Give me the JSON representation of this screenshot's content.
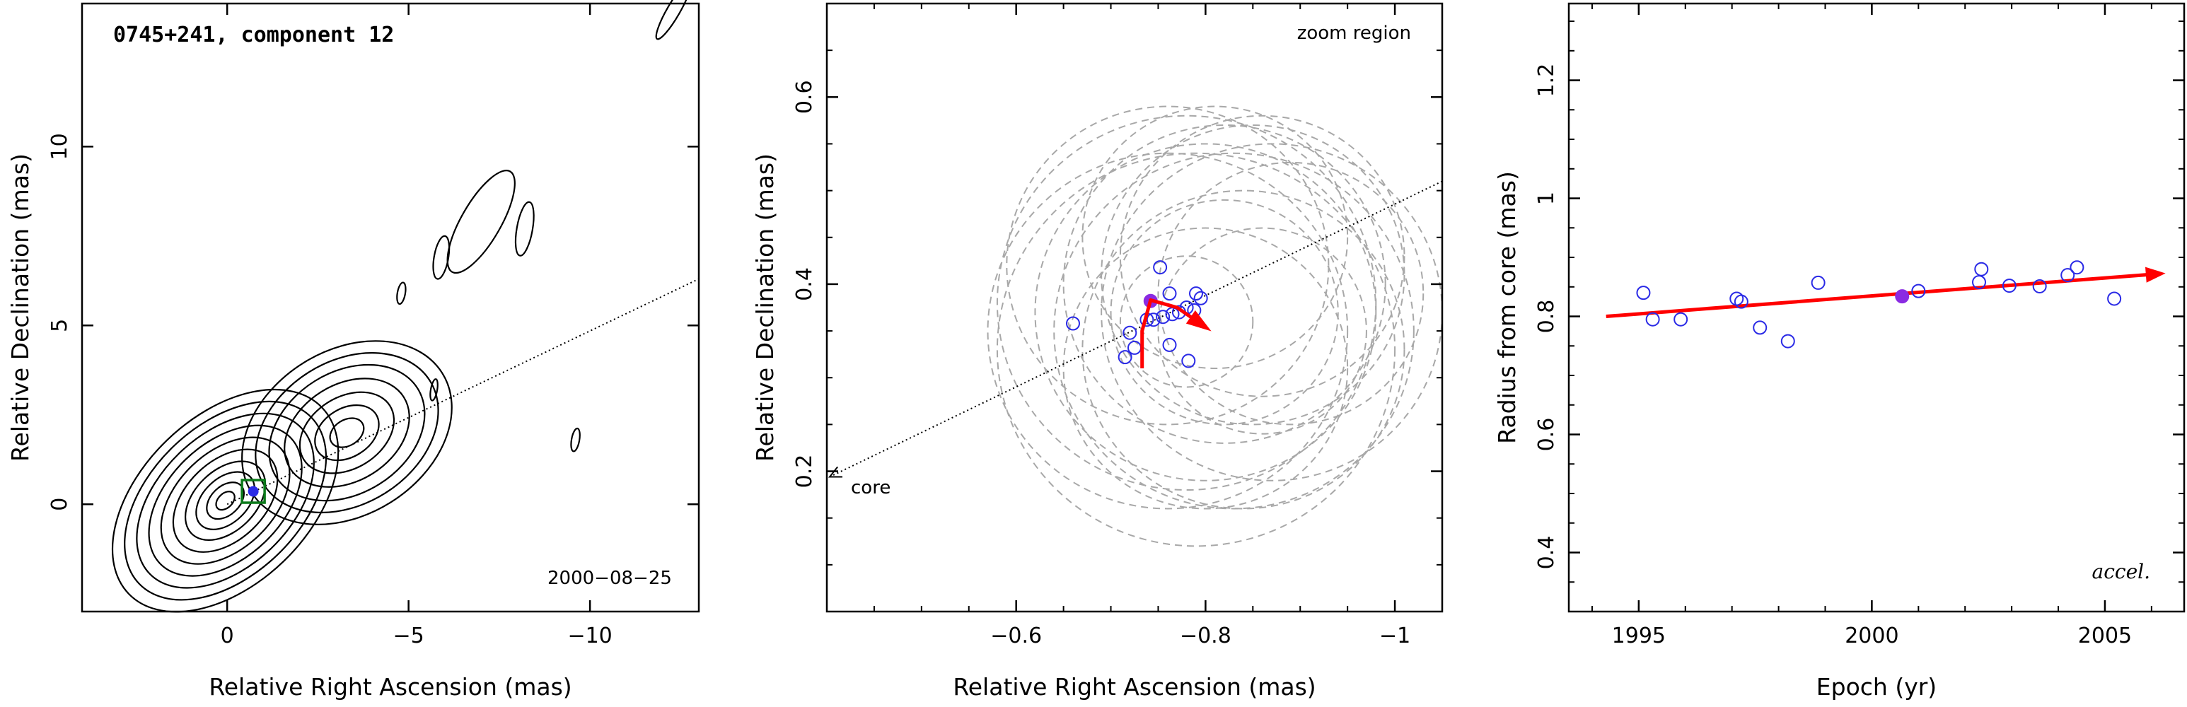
{
  "chart_data": [
    {
      "type": "contour",
      "title": "0745+241, component 12",
      "xlabel": "Relative Right Ascension (mas)",
      "ylabel": "Relative Declination (mas)",
      "xlim": [
        4,
        -13
      ],
      "ylim": [
        -3,
        14
      ],
      "xticks": [
        {
          "value": 0,
          "label": "0"
        },
        {
          "value": -5,
          "label": "−5"
        },
        {
          "value": -10,
          "label": "−10"
        }
      ],
      "yticks": [
        {
          "value": 0,
          "label": "0"
        },
        {
          "value": 5,
          "label": "5"
        },
        {
          "value": 10,
          "label": "10"
        }
      ],
      "epoch_label": "2000−08−25",
      "jet_axis": {
        "from": [
          0,
          0
        ],
        "to": [
          -13,
          6.3
        ]
      },
      "component": {
        "x": -0.72,
        "y": 0.36
      },
      "contour_blobs": [
        {
          "cx": 0.05,
          "cy": 0.1,
          "rings": [
            [
              3.7,
              2.35,
              -44
            ],
            [
              3.3,
              2.1,
              -44
            ],
            [
              2.9,
              1.85,
              -44
            ],
            [
              2.5,
              1.6,
              -44
            ],
            [
              2.1,
              1.35,
              -44
            ],
            [
              1.7,
              1.1,
              -44
            ],
            [
              1.3,
              0.85,
              -44
            ],
            [
              0.95,
              0.62,
              -44
            ],
            [
              0.6,
              0.4,
              -44
            ],
            [
              0.3,
              0.2,
              -44
            ]
          ]
        },
        {
          "cx": -3.3,
          "cy": 2.0,
          "rings": [
            [
              3.1,
              2.3,
              -32
            ],
            [
              2.7,
              2.0,
              -32
            ],
            [
              2.3,
              1.7,
              -32
            ],
            [
              1.85,
              1.35,
              -32
            ],
            [
              1.4,
              1.0,
              -32
            ],
            [
              0.95,
              0.68,
              -32
            ],
            [
              0.5,
              0.36,
              -32
            ]
          ]
        },
        {
          "cx": -7.0,
          "cy": 7.9,
          "rings": [
            [
              1.6,
              0.55,
              -60
            ]
          ]
        },
        {
          "cx": -8.2,
          "cy": 7.7,
          "rings": [
            [
              0.75,
              0.22,
              -80
            ]
          ]
        },
        {
          "cx": -5.9,
          "cy": 6.9,
          "rings": [
            [
              0.6,
              0.2,
              -80
            ]
          ]
        },
        {
          "cx": -4.8,
          "cy": 5.9,
          "rings": [
            [
              0.3,
              0.11,
              -80
            ]
          ]
        },
        {
          "cx": -5.7,
          "cy": 3.2,
          "rings": [
            [
              0.3,
              0.09,
              -80
            ]
          ]
        },
        {
          "cx": -9.6,
          "cy": 1.8,
          "rings": [
            [
              0.32,
              0.11,
              -80
            ]
          ]
        },
        {
          "cx": -12.3,
          "cy": 13.8,
          "rings": [
            [
              0.9,
              0.18,
              -60
            ]
          ]
        }
      ],
      "grid": false
    },
    {
      "type": "scatter",
      "xlabel": "Relative Right Ascension (mas)",
      "ylabel": "Relative Declination (mas)",
      "corner_label": "zoom region",
      "core_label": "core",
      "xlim": [
        -0.4,
        -1.05
      ],
      "ylim": [
        0.05,
        0.7
      ],
      "xticks": [
        {
          "value": -0.6,
          "label": "−0.6"
        },
        {
          "value": -0.8,
          "label": "−0.8"
        },
        {
          "value": -1.0,
          "label": "−1"
        }
      ],
      "yticks": [
        {
          "value": 0.2,
          "label": "0.2"
        },
        {
          "value": 0.4,
          "label": "0.4"
        },
        {
          "value": 0.6,
          "label": "0.6"
        }
      ],
      "minor_x_step": 0.05,
      "minor_y_step": 0.05,
      "positions": [
        {
          "x": -0.66,
          "y": 0.358
        },
        {
          "x": -0.72,
          "y": 0.348
        },
        {
          "x": -0.715,
          "y": 0.322
        },
        {
          "x": -0.725,
          "y": 0.332
        },
        {
          "x": -0.745,
          "y": 0.362
        },
        {
          "x": -0.738,
          "y": 0.362
        },
        {
          "x": -0.752,
          "y": 0.418
        },
        {
          "x": -0.755,
          "y": 0.365
        },
        {
          "x": -0.762,
          "y": 0.39
        },
        {
          "x": -0.765,
          "y": 0.368
        },
        {
          "x": -0.772,
          "y": 0.37
        },
        {
          "x": -0.78,
          "y": 0.375
        },
        {
          "x": -0.788,
          "y": 0.372
        },
        {
          "x": -0.79,
          "y": 0.39
        },
        {
          "x": -0.795,
          "y": 0.385
        },
        {
          "x": -0.762,
          "y": 0.335
        },
        {
          "x": -0.782,
          "y": 0.318
        }
      ],
      "highlight": {
        "x": -0.742,
        "y": 0.382
      },
      "beam_ellipses": [
        {
          "cx": -0.76,
          "cy": 0.35,
          "r": 0.19
        },
        {
          "cx": -0.78,
          "cy": 0.38,
          "r": 0.2
        },
        {
          "cx": -0.8,
          "cy": 0.37,
          "r": 0.18
        },
        {
          "cx": -0.82,
          "cy": 0.4,
          "r": 0.17
        },
        {
          "cx": -0.83,
          "cy": 0.35,
          "r": 0.19
        },
        {
          "cx": -0.85,
          "cy": 0.41,
          "r": 0.16
        },
        {
          "cx": -0.87,
          "cy": 0.37,
          "r": 0.18
        },
        {
          "cx": -0.84,
          "cy": 0.33,
          "r": 0.17
        },
        {
          "cx": -0.86,
          "cy": 0.43,
          "r": 0.15
        },
        {
          "cx": -0.79,
          "cy": 0.33,
          "r": 0.21
        },
        {
          "cx": -0.82,
          "cy": 0.37,
          "r": 0.12
        },
        {
          "cx": -0.86,
          "cy": 0.35,
          "r": 0.11
        },
        {
          "cx": -0.78,
          "cy": 0.36,
          "r": 0.07
        },
        {
          "cx": -0.89,
          "cy": 0.39,
          "r": 0.14
        },
        {
          "cx": -0.81,
          "cy": 0.45,
          "r": 0.14
        },
        {
          "cx": -0.8,
          "cy": 0.31,
          "r": 0.15
        },
        {
          "cx": -0.76,
          "cy": 0.42,
          "r": 0.17
        }
      ],
      "jet_axis": {
        "from": [
          -1.05,
          0.51
        ],
        "to": [
          -0.403,
          0.194
        ]
      },
      "velocity_arrow": {
        "path": [
          [
            -0.733,
            0.31
          ],
          [
            -0.733,
            0.35
          ],
          [
            -0.742,
            0.383
          ],
          [
            -0.77,
            0.375
          ],
          [
            -0.8,
            0.354
          ]
        ]
      },
      "grid": false
    },
    {
      "type": "scatter",
      "xlabel": "Epoch (yr)",
      "ylabel": "Radius from core (mas)",
      "corner_label": "accel.",
      "xlim": [
        1993.5,
        2006.7
      ],
      "ylim": [
        0.3,
        1.33
      ],
      "xticks": [
        {
          "value": 1995,
          "label": "1995"
        },
        {
          "value": 2000,
          "label": "2000"
        },
        {
          "value": 2005,
          "label": "2005"
        }
      ],
      "yticks": [
        {
          "value": 0.4,
          "label": "0.4"
        },
        {
          "value": 0.6,
          "label": "0.6"
        },
        {
          "value": 0.8,
          "label": "0.8"
        },
        {
          "value": 1.0,
          "label": "1"
        },
        {
          "value": 1.2,
          "label": "1.2"
        }
      ],
      "minor_x_step": 1,
      "minor_y_step": 0.05,
      "points": [
        {
          "x": 1995.1,
          "y": 0.84
        },
        {
          "x": 1995.3,
          "y": 0.795
        },
        {
          "x": 1995.9,
          "y": 0.795
        },
        {
          "x": 1997.1,
          "y": 0.83
        },
        {
          "x": 1997.2,
          "y": 0.825
        },
        {
          "x": 1997.6,
          "y": 0.781
        },
        {
          "x": 1998.2,
          "y": 0.758
        },
        {
          "x": 1998.85,
          "y": 0.857
        },
        {
          "x": 2001.0,
          "y": 0.843
        },
        {
          "x": 2002.3,
          "y": 0.858
        },
        {
          "x": 2002.35,
          "y": 0.88
        },
        {
          "x": 2002.95,
          "y": 0.852
        },
        {
          "x": 2003.6,
          "y": 0.851
        },
        {
          "x": 2004.2,
          "y": 0.87
        },
        {
          "x": 2004.4,
          "y": 0.883
        },
        {
          "x": 2005.2,
          "y": 0.83
        }
      ],
      "highlight": {
        "x": 2000.65,
        "y": 0.834
      },
      "fit_arrow": {
        "from": [
          1994.3,
          0.8
        ],
        "to": [
          2006.3,
          0.873
        ]
      },
      "grid": false
    }
  ],
  "colors": {
    "contour": "#000000",
    "points": "#2a2ae6",
    "highlight": "#8a2be2",
    "fit": "#ff0000",
    "beam": "#a8a8a8",
    "marker_box": "#0b7a1a",
    "marker_dot": "#2a2ae6"
  }
}
